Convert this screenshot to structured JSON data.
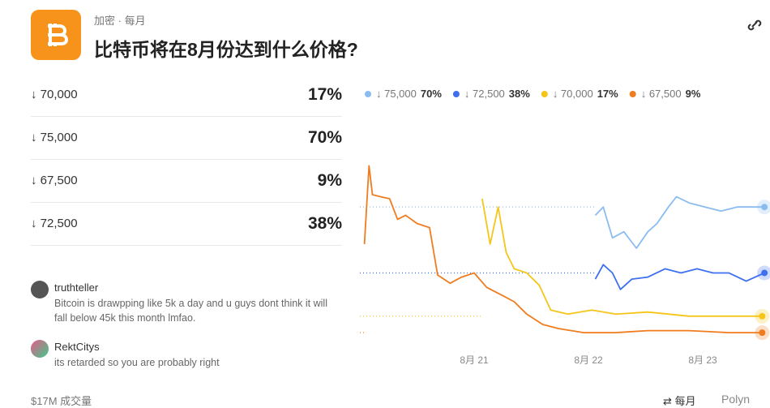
{
  "header": {
    "category": "加密",
    "frequency": "每月",
    "title": "比特币将在8月份达到什么价格?"
  },
  "outcomes": [
    {
      "label": "↓ 70,000",
      "percent": "17%"
    },
    {
      "label": "↓ 75,000",
      "percent": "70%"
    },
    {
      "label": "↓ 67,500",
      "percent": "9%"
    },
    {
      "label": "↓ 72,500",
      "percent": "38%"
    }
  ],
  "comments": [
    {
      "user": "truthteller",
      "text": "Bitcoin is drawpping like 5k a day and u guys dont think it will fall below 45k this month lmfao."
    },
    {
      "user": "RektCitys",
      "text": "its retarded so you are probably right"
    }
  ],
  "footer": {
    "volume": "$17M 成交量",
    "frequency": "每月",
    "source": "Polyn"
  },
  "chart_data": {
    "type": "line",
    "xlim": [
      20,
      23.6
    ],
    "xticks": [
      {
        "value": 21,
        "label": "8月 21"
      },
      {
        "value": 22,
        "label": "8月 22"
      },
      {
        "value": 23,
        "label": "8月 23"
      }
    ],
    "ylim": [
      0,
      100
    ],
    "series": [
      {
        "name": "↓ 75,000",
        "legend_value": "70%",
        "color": "#8bbcf0",
        "x": [
          22.06,
          22.13,
          22.21,
          22.31,
          22.42,
          22.52,
          22.6,
          22.7,
          22.77,
          22.88,
          23.02,
          23.16,
          23.3,
          23.45,
          23.54
        ],
        "values": [
          66,
          70,
          55,
          58,
          50,
          58,
          62,
          70,
          75,
          72,
          70,
          68,
          70,
          70,
          70
        ]
      },
      {
        "name": "↓ 72,500",
        "legend_value": "38%",
        "color": "#3d6ff0",
        "x": [
          22.06,
          22.13,
          22.21,
          22.28,
          22.38,
          22.52,
          22.67,
          22.81,
          22.95,
          23.09,
          23.23,
          23.38,
          23.54
        ],
        "values": [
          35,
          42,
          38,
          30,
          35,
          36,
          40,
          38,
          40,
          38,
          38,
          34,
          38
        ]
      },
      {
        "name": "↓ 70,000",
        "legend_value": "17%",
        "color": "#f5c518",
        "x": [
          21.07,
          21.14,
          21.21,
          21.28,
          21.35,
          21.46,
          21.57,
          21.67,
          21.82,
          22.03,
          22.24,
          22.52,
          22.88,
          23.23,
          23.52
        ],
        "values": [
          74,
          52,
          70,
          48,
          40,
          38,
          32,
          20,
          18,
          20,
          18,
          19,
          17,
          17,
          17
        ]
      },
      {
        "name": "↓ 67,500",
        "legend_value": "9%",
        "color": "#f07c1e",
        "x": [
          20.04,
          20.08,
          20.11,
          20.18,
          20.26,
          20.33,
          20.4,
          20.5,
          20.61,
          20.68,
          20.79,
          20.89,
          21,
          21.11,
          21.25,
          21.35,
          21.46,
          21.6,
          21.74,
          21.96,
          22.24,
          22.52,
          22.88,
          23.23,
          23.52
        ],
        "values": [
          52,
          90,
          76,
          75,
          74,
          64,
          66,
          62,
          60,
          37,
          33,
          36,
          38,
          31,
          27,
          24,
          18,
          13,
          11,
          9,
          9,
          10,
          10,
          9,
          9
        ]
      }
    ]
  }
}
